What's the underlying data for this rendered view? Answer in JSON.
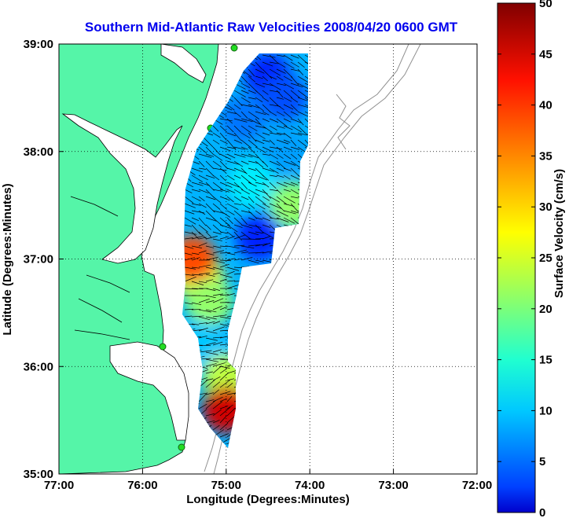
{
  "chart_data": {
    "type": "heatmap",
    "title": "Southern Mid-Atlantic Raw Velocities 2008/04/20 0600 GMT",
    "xlabel": "Longitude (Degrees:Minutes)",
    "ylabel": "Latitude (Degrees:Minutes)",
    "x_ticks": [
      "77:00",
      "76:00",
      "75:00",
      "74:00",
      "73:00",
      "72:00"
    ],
    "y_ticks": [
      "39:00",
      "38:00",
      "37:00",
      "36:00",
      "35:00"
    ],
    "xlim": [
      -77,
      -72
    ],
    "ylim": [
      35,
      39
    ],
    "grid": true,
    "colorbar": {
      "label": "Surface Velocity (cm/s)",
      "min": 0,
      "max": 50,
      "ticks": [
        "0",
        "5",
        "10",
        "15",
        "20",
        "25",
        "30",
        "35",
        "40",
        "45",
        "50"
      ],
      "colormap": "jet"
    },
    "velocity_field": [
      {
        "lon": -74.5,
        "lat": 38.7,
        "speed": 8
      },
      {
        "lon": -74.3,
        "lat": 38.5,
        "speed": 10
      },
      {
        "lon": -74.8,
        "lat": 38.3,
        "speed": 12
      },
      {
        "lon": -74.3,
        "lat": 38.0,
        "speed": 14
      },
      {
        "lon": -74.7,
        "lat": 37.7,
        "speed": 18
      },
      {
        "lon": -74.2,
        "lat": 37.5,
        "speed": 26
      },
      {
        "lon": -74.6,
        "lat": 37.2,
        "speed": 8
      },
      {
        "lon": -75.3,
        "lat": 36.8,
        "speed": 30
      },
      {
        "lon": -75.4,
        "lat": 37.0,
        "speed": 40
      },
      {
        "lon": -75.2,
        "lat": 36.6,
        "speed": 26
      },
      {
        "lon": -75.3,
        "lat": 36.2,
        "speed": 16
      },
      {
        "lon": -75.0,
        "lat": 35.9,
        "speed": 28
      },
      {
        "lon": -75.0,
        "lat": 35.6,
        "speed": 46
      }
    ]
  },
  "colors": {
    "land": "#55f5a8",
    "coastline": "#000000",
    "bathymetry": "#909090",
    "title": "#0000ee",
    "station": "#22dd22"
  }
}
